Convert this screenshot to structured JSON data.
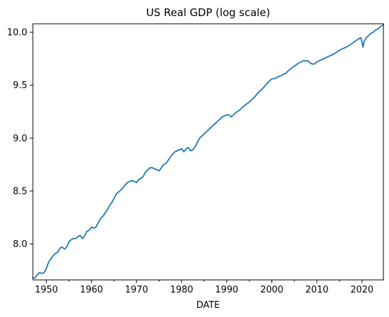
{
  "chart_data": {
    "type": "line",
    "title": "US Real GDP (log scale)",
    "xlabel": "DATE",
    "ylabel": "",
    "xlim": [
      1947.0,
      2024.75
    ],
    "ylim": [
      7.66,
      10.08
    ],
    "grid": false,
    "legend": "none",
    "x_ticks": [
      1950,
      1960,
      1970,
      1980,
      1990,
      2000,
      2010,
      2020
    ],
    "x_tick_labels": [
      "1950",
      "1960",
      "1970",
      "1980",
      "1990",
      "2000",
      "2010",
      "2020"
    ],
    "x_minor_ticks": [
      1955,
      1965,
      1975,
      1985,
      1995,
      2005,
      2015
    ],
    "y_ticks": [
      8.0,
      8.5,
      9.0,
      9.5,
      10.0
    ],
    "y_tick_labels": [
      "8.0",
      "8.5",
      "9.0",
      "9.5",
      "10.0"
    ],
    "colors": {
      "line": "#1f77b4",
      "axes": "#000000",
      "background": "#ffffff"
    },
    "series": [
      {
        "x": [
          1947.0,
          1947.5,
          1948.0,
          1948.5,
          1949.0,
          1949.5,
          1950.0,
          1950.5,
          1951.0,
          1951.5,
          1952.0,
          1952.5,
          1953.0,
          1953.5,
          1954.0,
          1954.5,
          1955.0,
          1955.5,
          1956.0,
          1956.5,
          1957.0,
          1957.5,
          1958.0,
          1958.5,
          1959.0,
          1959.5,
          1960.0,
          1960.5,
          1961.0,
          1961.5,
          1962.0,
          1962.5,
          1963.0,
          1963.5,
          1964.0,
          1964.5,
          1965.0,
          1965.5,
          1966.0,
          1966.5,
          1967.0,
          1967.5,
          1968.0,
          1968.5,
          1969.0,
          1969.5,
          1970.0,
          1970.5,
          1971.0,
          1971.5,
          1972.0,
          1972.5,
          1973.0,
          1973.5,
          1974.0,
          1974.5,
          1975.0,
          1975.5,
          1976.0,
          1976.5,
          1977.0,
          1977.5,
          1978.0,
          1978.5,
          1979.0,
          1979.5,
          1980.0,
          1980.5,
          1981.0,
          1981.5,
          1982.0,
          1982.5,
          1983.0,
          1983.5,
          1984.0,
          1984.5,
          1985.0,
          1986.0,
          1987.0,
          1988.0,
          1989.0,
          1990.0,
          1990.5,
          1991.0,
          1991.5,
          1992.0,
          1993.0,
          1994.0,
          1995.0,
          1996.0,
          1997.0,
          1998.0,
          1999.0,
          2000.0,
          2000.5,
          2001.0,
          2001.5,
          2002.0,
          2003.0,
          2004.0,
          2005.0,
          2006.0,
          2007.0,
          2007.5,
          2008.0,
          2008.5,
          2009.0,
          2009.5,
          2010.0,
          2011.0,
          2012.0,
          2013.0,
          2014.0,
          2015.0,
          2016.0,
          2017.0,
          2018.0,
          2019.0,
          2019.75,
          2020.25,
          2020.5,
          2021.0,
          2021.5,
          2022.0,
          2022.5,
          2023.0,
          2023.5,
          2024.0,
          2024.75
        ],
        "y": [
          7.68,
          7.68,
          7.71,
          7.73,
          7.72,
          7.73,
          7.77,
          7.83,
          7.86,
          7.89,
          7.91,
          7.92,
          7.96,
          7.97,
          7.95,
          7.97,
          8.02,
          8.04,
          8.05,
          8.05,
          8.07,
          8.08,
          8.05,
          8.08,
          8.12,
          8.13,
          8.16,
          8.15,
          8.16,
          8.2,
          8.24,
          8.26,
          8.29,
          8.32,
          8.36,
          8.39,
          8.43,
          8.47,
          8.49,
          8.51,
          8.53,
          8.56,
          8.58,
          8.59,
          8.6,
          8.59,
          8.58,
          8.61,
          8.62,
          8.64,
          8.68,
          8.7,
          8.72,
          8.72,
          8.71,
          8.7,
          8.69,
          8.72,
          8.75,
          8.76,
          8.79,
          8.82,
          8.85,
          8.87,
          8.88,
          8.89,
          8.9,
          8.87,
          8.9,
          8.91,
          8.88,
          8.89,
          8.92,
          8.96,
          9.0,
          9.02,
          9.04,
          9.08,
          9.12,
          9.16,
          9.2,
          9.22,
          9.22,
          9.2,
          9.22,
          9.24,
          9.27,
          9.31,
          9.34,
          9.38,
          9.43,
          9.47,
          9.52,
          9.56,
          9.56,
          9.57,
          9.58,
          9.59,
          9.61,
          9.65,
          9.68,
          9.71,
          9.73,
          9.73,
          9.73,
          9.71,
          9.7,
          9.7,
          9.72,
          9.74,
          9.76,
          9.78,
          9.8,
          9.83,
          9.85,
          9.87,
          9.9,
          9.93,
          9.95,
          9.86,
          9.92,
          9.95,
          9.97,
          9.99,
          10.0,
          10.02,
          10.03,
          10.05,
          10.07
        ]
      }
    ]
  }
}
